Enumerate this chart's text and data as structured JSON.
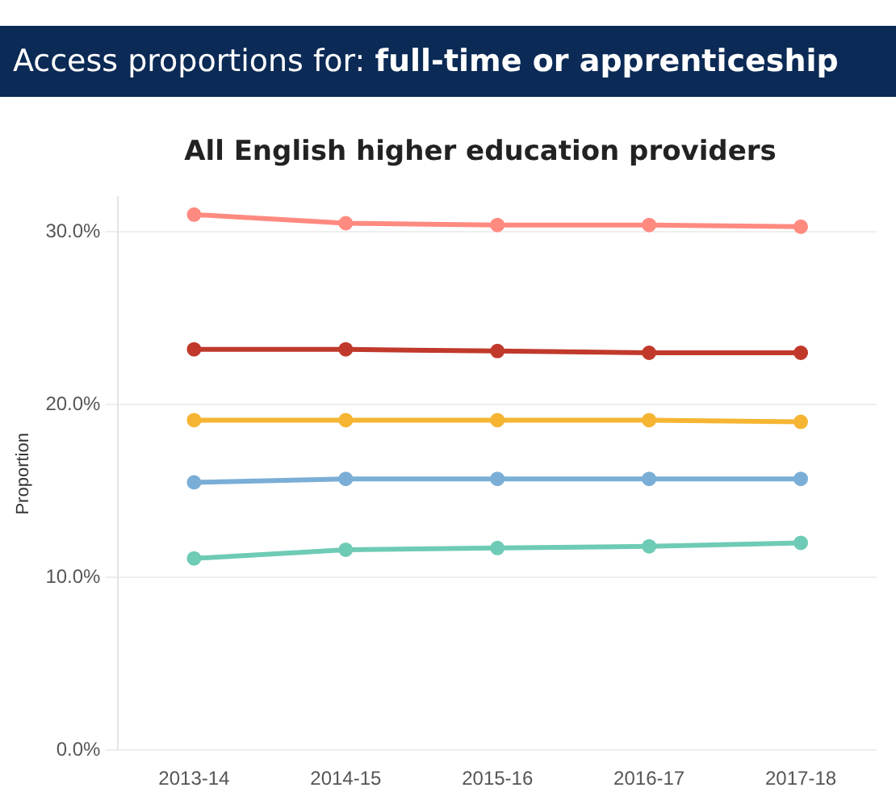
{
  "chart_data": {
    "type": "line",
    "title": "Access proportions for: full-time or apprenticeship",
    "subtitle": "All English higher education providers",
    "ylabel": "Proportion",
    "categories": [
      "2013-14",
      "2014-15",
      "2015-16",
      "2016-17",
      "2017-18"
    ],
    "series": [
      {
        "color": "#ff8a80",
        "values": [
          31.0,
          30.5,
          30.4,
          30.4,
          30.3
        ]
      },
      {
        "color": "#c0392b",
        "values": [
          23.2,
          23.2,
          23.1,
          23.0,
          23.0
        ]
      },
      {
        "color": "#f5b533",
        "values": [
          19.1,
          19.1,
          19.1,
          19.1,
          19.0
        ]
      },
      {
        "color": "#7aaed6",
        "values": [
          15.5,
          15.7,
          15.7,
          15.7,
          15.7
        ]
      },
      {
        "color": "#6ecbb5",
        "values": [
          11.1,
          11.6,
          11.7,
          11.8,
          12.0
        ]
      }
    ],
    "ylim": [
      0,
      32
    ],
    "yticks": [
      {
        "value": 0,
        "label": "0.0%"
      },
      {
        "value": 10,
        "label": "10.0%"
      },
      {
        "value": 20,
        "label": "20.0%"
      },
      {
        "value": 30,
        "label": "30.0%"
      }
    ],
    "grid": "y",
    "marker": "circle",
    "line_style": "solid"
  }
}
